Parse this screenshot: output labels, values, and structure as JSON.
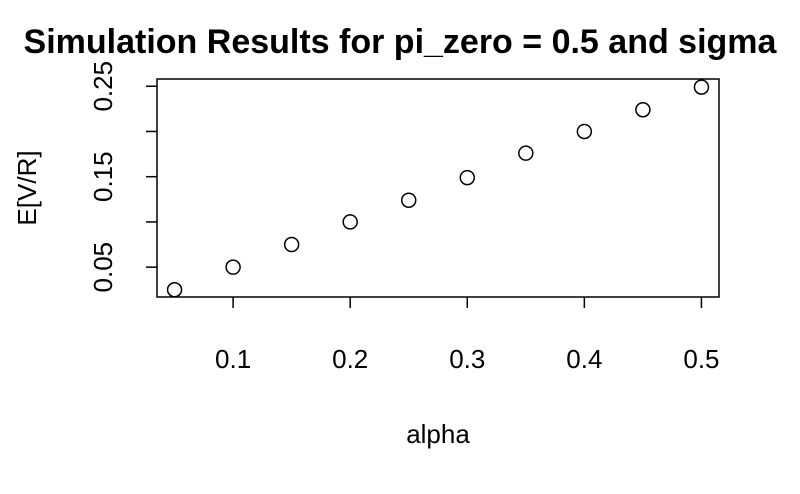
{
  "chart_data": {
    "type": "scatter",
    "title": "Simulation Results for pi_zero = 0.5 and sigma",
    "xlabel": "alpha",
    "ylabel": "E[V/R]",
    "x_ticks": [
      "0.1",
      "0.2",
      "0.3",
      "0.4",
      "0.5"
    ],
    "y_ticks": [
      "0.05",
      "0.15",
      "0.25"
    ],
    "y_minor_ticks": [
      0.1,
      0.2
    ],
    "xlim": [
      0.035,
      0.515
    ],
    "ylim": [
      0.017,
      0.258
    ],
    "grid": false,
    "legend": "none",
    "marker": "open-circle",
    "x": [
      0.05,
      0.1,
      0.15,
      0.2,
      0.25,
      0.3,
      0.35,
      0.4,
      0.45,
      0.5
    ],
    "y": [
      0.025,
      0.05,
      0.075,
      0.1,
      0.124,
      0.149,
      0.176,
      0.2,
      0.224,
      0.249
    ]
  }
}
